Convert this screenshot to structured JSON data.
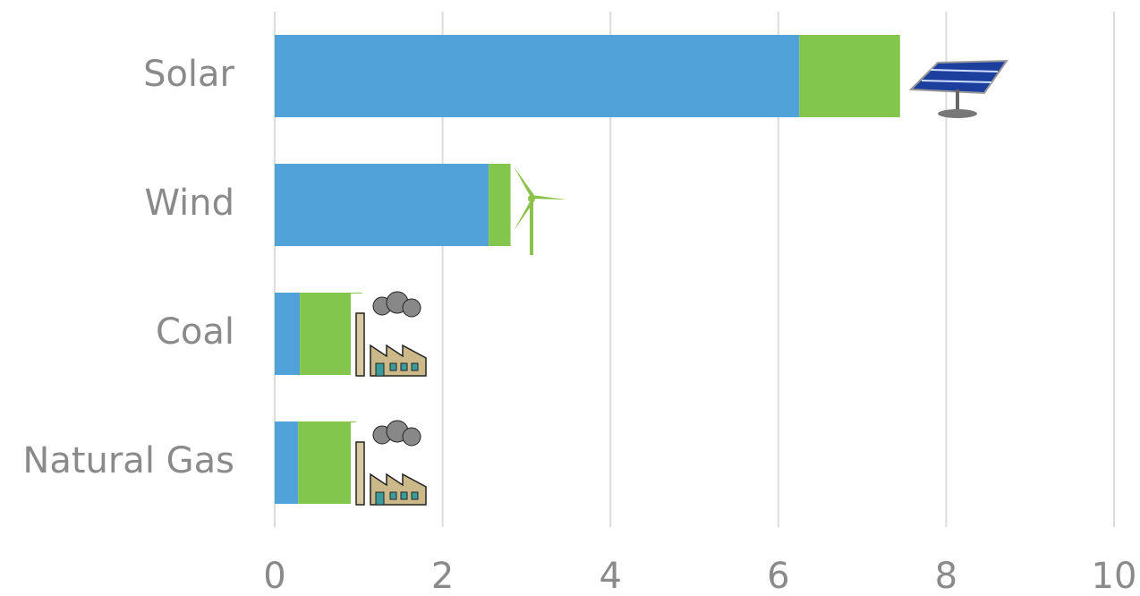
{
  "chart_data": {
    "type": "stacked-bar",
    "orientation": "horizontal",
    "categories": [
      "Solar",
      "Wind",
      "Coal",
      "Natural Gas"
    ],
    "series": [
      {
        "color": "#52a2da",
        "values": [
          6.25,
          2.55,
          0.3,
          0.28
        ]
      },
      {
        "color": "#82c64e",
        "values": [
          1.2,
          0.26,
          0.74,
          0.69
        ]
      }
    ],
    "xlim": [
      0,
      10
    ],
    "xticks": [
      0,
      2,
      4,
      6,
      8,
      10
    ],
    "grid": true
  }
}
